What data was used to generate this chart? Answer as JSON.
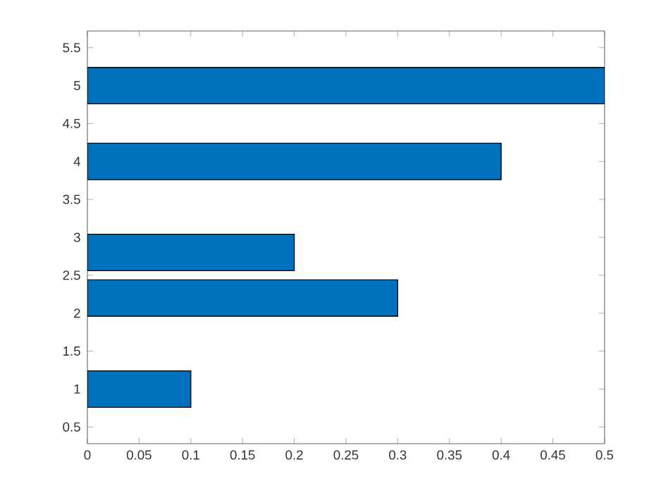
{
  "chart_data": {
    "type": "bar",
    "orientation": "horizontal",
    "x": [
      1,
      2.2,
      2.8,
      4,
      5
    ],
    "values": [
      0.1,
      0.3,
      0.2,
      0.4,
      0.5
    ],
    "color": "#0072bd",
    "xlim": [
      0,
      0.5
    ],
    "xticks": [
      0,
      0.05,
      0.1,
      0.15,
      0.2,
      0.25,
      0.3,
      0.35,
      0.4,
      0.45,
      0.5
    ],
    "ylim": [
      0.28,
      5.72
    ],
    "yticks": [
      0.5,
      1,
      1.5,
      2,
      2.5,
      3,
      3.5,
      4,
      4.5,
      5,
      5.5
    ]
  }
}
